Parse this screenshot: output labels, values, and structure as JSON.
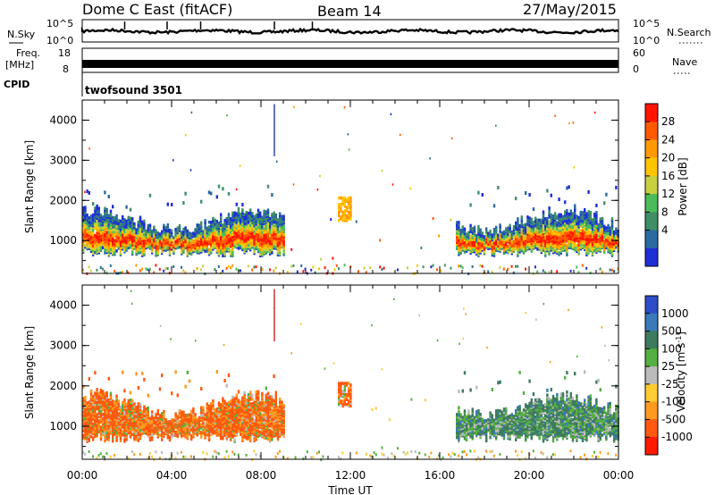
{
  "header": {
    "station": "Dome C East (fitACF)",
    "beam": "Beam 14",
    "date": "27/May/2015"
  },
  "strips": {
    "nsky_label": "N.Sky",
    "nsearch_label": "N.Search",
    "noise_ticks": [
      "10^5",
      "10^0"
    ],
    "freq_label": "Freq.",
    "freq_unit": "[MHz]",
    "freq_ticks": [
      "18",
      "8"
    ],
    "nave_label": "Nave",
    "nave_ticks": [
      "60",
      "0"
    ],
    "cpid_label": "CPID",
    "cpid_value": "twofsound 3501"
  },
  "chart_data": [
    {
      "type": "heatmap",
      "name": "Power",
      "xlabel": "Time UT",
      "ylabel": "Slant Range [km]",
      "colorbar_label": "Power [dB]",
      "colorbar_ticks": [
        "28",
        "24",
        "20",
        "16",
        "12",
        "8",
        "4"
      ],
      "colorbar_colors": [
        "#ff1500",
        "#ff5a00",
        "#ff9900",
        "#ffc600",
        "#c8d040",
        "#4cbb5a",
        "#3f8f66",
        "#2a6aa0",
        "#1e2fd6"
      ],
      "x_ticks": [
        "00:00",
        "04:00",
        "08:00",
        "12:00",
        "16:00",
        "20:00",
        "00:00"
      ],
      "x_range_hours": [
        0,
        24
      ],
      "y_ticks": [
        "1000",
        "2000",
        "3000",
        "4000"
      ],
      "y_range_km": [
        180,
        4500
      ],
      "echo_regions": [
        {
          "t0": 0.0,
          "t1": 9.0,
          "r0": 600,
          "r1": 1900,
          "note": "main band"
        },
        {
          "t0": 11.4,
          "t1": 12.0,
          "r0": 1500,
          "r1": 2100
        },
        {
          "t0": 16.7,
          "t1": 24.0,
          "r0": 600,
          "r1": 1900,
          "note": "main band"
        },
        {
          "t0": 8.55,
          "t1": 8.62,
          "r0": 3100,
          "r1": 4400,
          "note": "vertical streak"
        }
      ]
    },
    {
      "type": "heatmap",
      "name": "Velocity",
      "xlabel": "Time UT",
      "ylabel": "Slant Range [km]",
      "colorbar_label": "Velocity [m s-1]",
      "colorbar_ticks": [
        "1000",
        "500",
        "100",
        "25",
        "-25",
        "-100",
        "-500",
        "-1000"
      ],
      "colorbar_colors": [
        "#2e4ec8",
        "#3a7ab8",
        "#3e7a5e",
        "#55b040",
        "#bbbbbb",
        "#ffcc33",
        "#ff9922",
        "#ff5a10",
        "#ff1a00"
      ],
      "x_ticks": [
        "00:00",
        "04:00",
        "08:00",
        "12:00",
        "16:00",
        "20:00",
        "00:00"
      ],
      "x_range_hours": [
        0,
        24
      ],
      "y_ticks": [
        "1000",
        "2000",
        "3000",
        "4000"
      ],
      "y_range_km": [
        180,
        4500
      ],
      "echo_regions": [
        {
          "t0": 0.0,
          "t1": 9.0,
          "r0": 600,
          "r1": 1900,
          "note": "negative (orange)"
        },
        {
          "t0": 16.7,
          "t1": 24.0,
          "r0": 600,
          "r1": 1900,
          "note": "positive (green)"
        }
      ]
    }
  ]
}
